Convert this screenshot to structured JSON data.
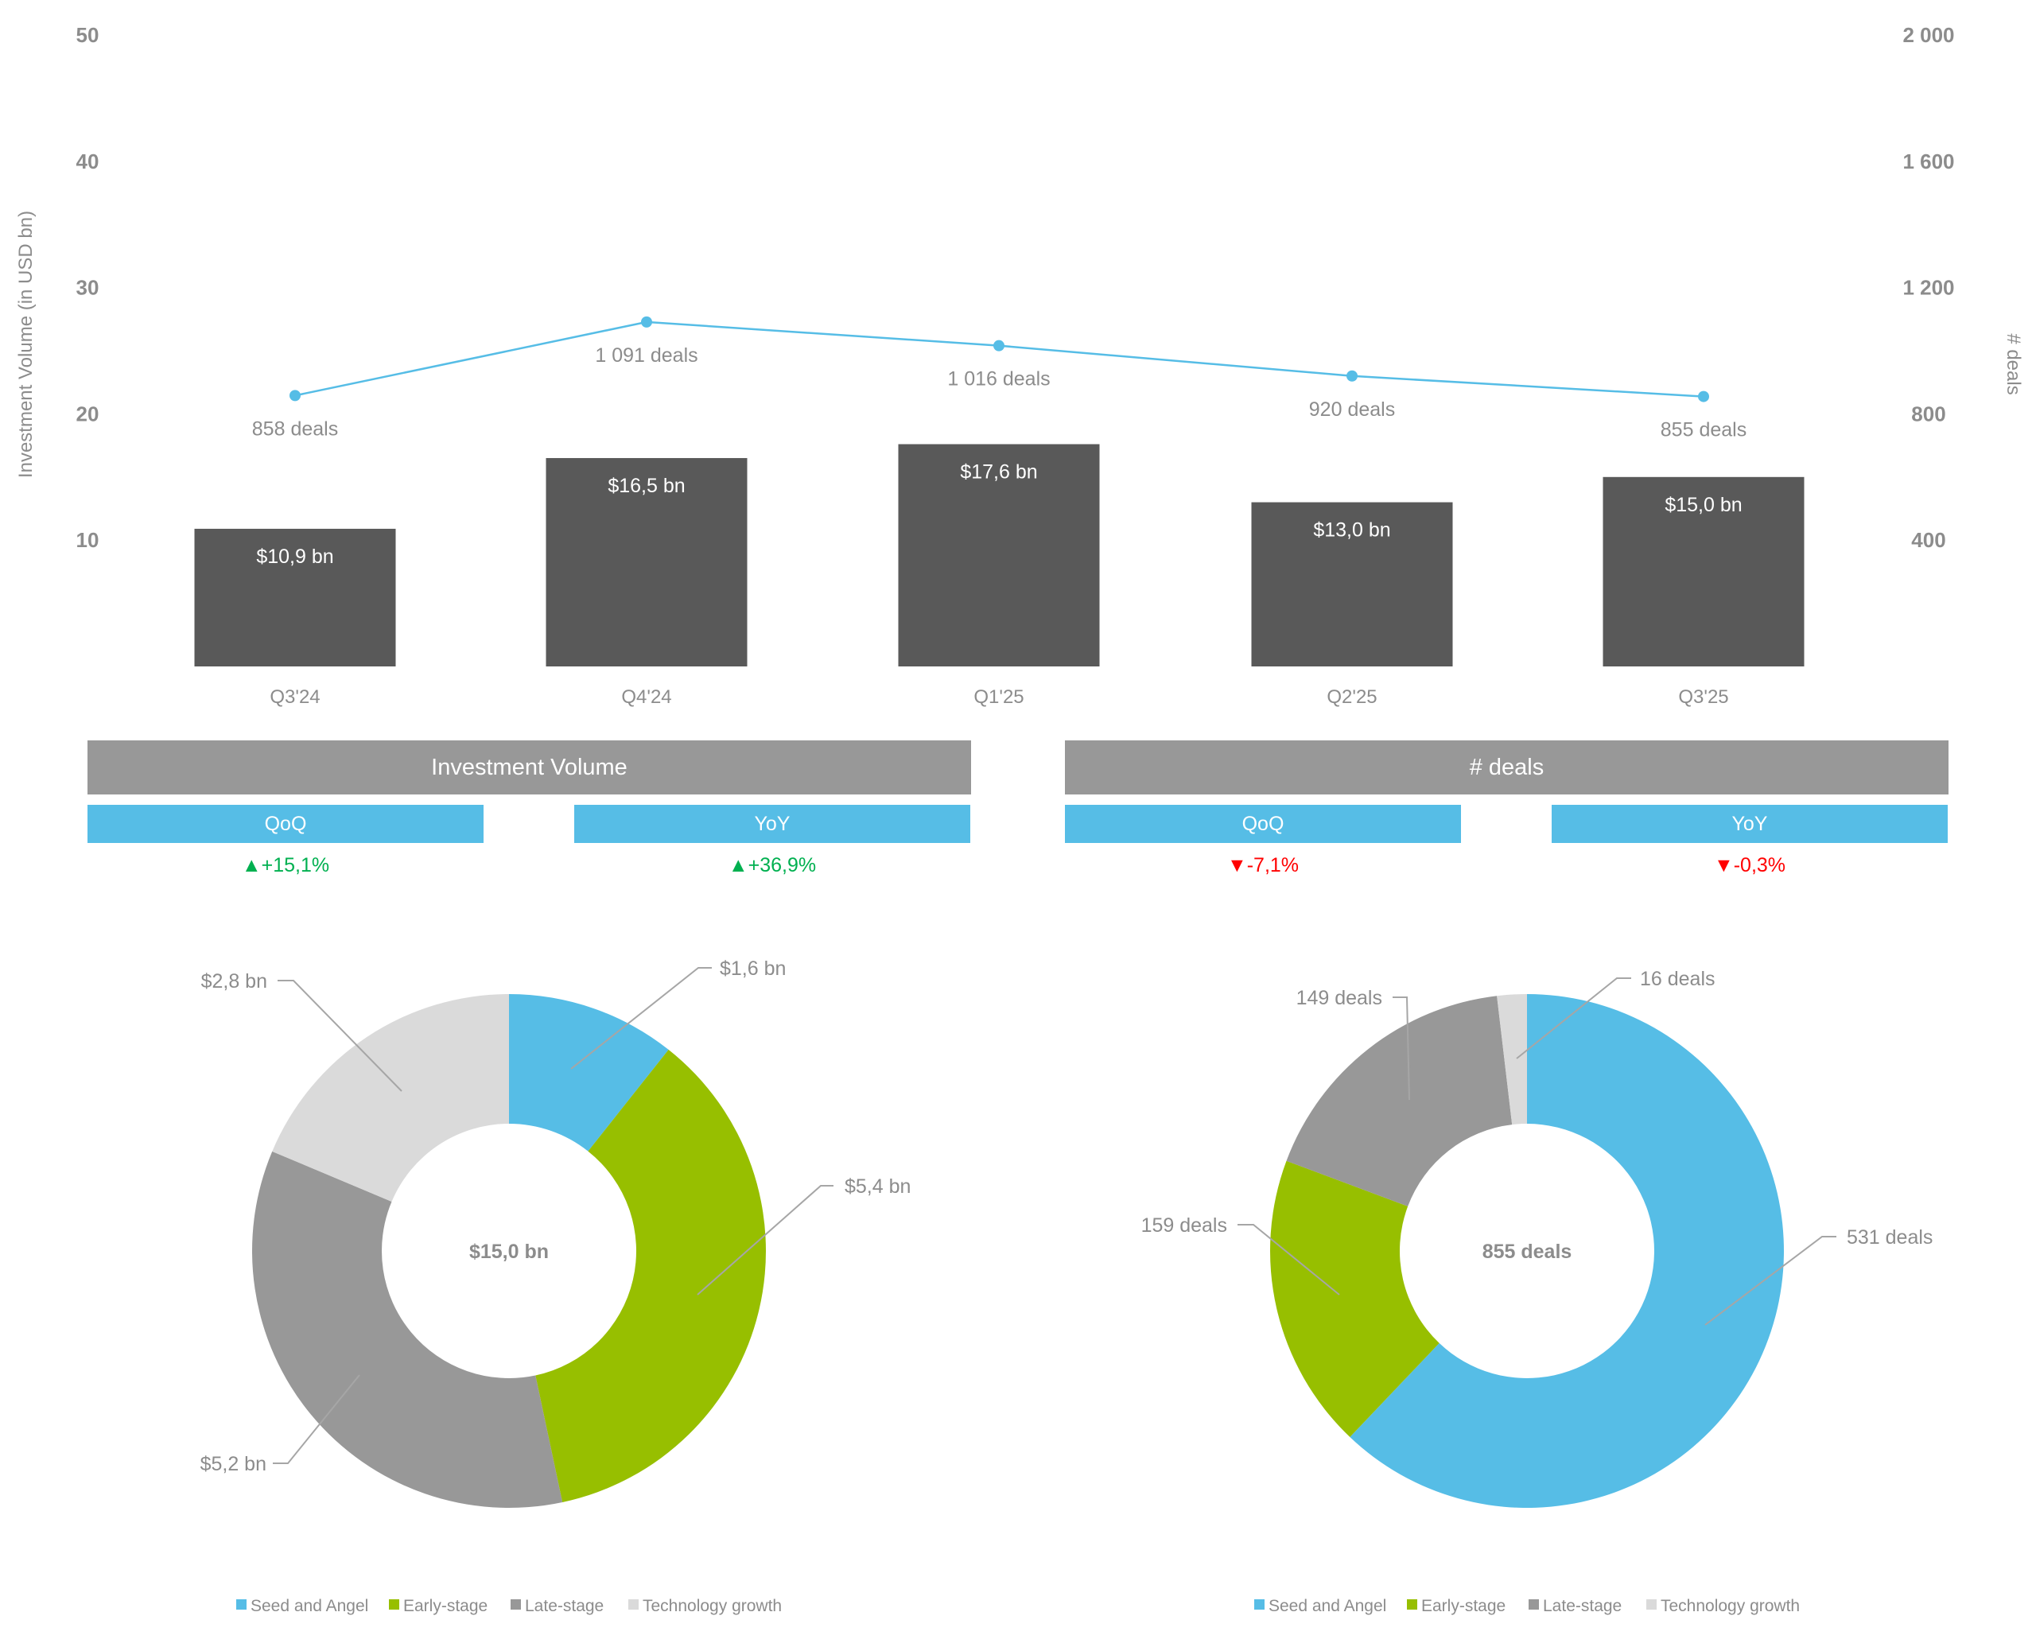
{
  "colors": {
    "bar": "#595959",
    "line": "#56BDE6",
    "seed": "#56BDE6",
    "early": "#97BF00",
    "late": "#989898",
    "tech": "#DADADA",
    "text": "#8C8C8C",
    "up": "#00B050",
    "down": "#FF0000",
    "kpi_header": "#989898",
    "kpi_sub": "#56BDE6"
  },
  "chart_data": [
    {
      "type": "bar+line",
      "categories": [
        "Q3'24",
        "Q4'24",
        "Q1'25",
        "Q2'25",
        "Q3'25"
      ],
      "ylabel": "Investment Volume (in USD bn)",
      "y2label": "# deals",
      "ylim": [
        0,
        50
      ],
      "y2lim": [
        0,
        2000
      ],
      "yticks": [
        "10",
        "20",
        "30",
        "40",
        "50"
      ],
      "y2ticks": [
        "400",
        "800",
        "1 200",
        "1 600",
        "2 000"
      ],
      "grid": false,
      "series": [
        {
          "kind": "bar",
          "axis": "left",
          "values": [
            10.9,
            16.5,
            17.6,
            13.0,
            15.0
          ],
          "labels": [
            "$10,9 bn",
            "$16,5 bn",
            "$17,6 bn",
            "$13,0 bn",
            "$15,0 bn"
          ]
        },
        {
          "kind": "line",
          "axis": "right",
          "values": [
            858,
            1091,
            1016,
            920,
            855
          ],
          "labels": [
            "858 deals",
            "1 091 deals",
            "1 016 deals",
            "920 deals",
            "855 deals"
          ]
        }
      ]
    },
    {
      "type": "pie",
      "variant": "donut",
      "center_label": "$15,0 bn",
      "categories": [
        "Seed and Angel",
        "Early-stage",
        "Late-stage",
        "Technology growth"
      ],
      "values": [
        1.6,
        5.4,
        5.2,
        2.8
      ],
      "labels": [
        "$1,6 bn",
        "$5,4 bn",
        "$5,2 bn",
        "$2,8 bn"
      ],
      "legend": "bottom"
    },
    {
      "type": "pie",
      "variant": "donut",
      "center_label": "855 deals",
      "categories": [
        "Seed and Angel",
        "Early-stage",
        "Late-stage",
        "Technology growth"
      ],
      "values": [
        531,
        159,
        149,
        16
      ],
      "labels": [
        "531 deals",
        "159 deals",
        "149 deals",
        "16 deals"
      ],
      "legend": "bottom"
    }
  ],
  "kpi": {
    "volume": {
      "title": "Investment Volume",
      "qoq_label": "QoQ",
      "yoy_label": "YoY",
      "qoq_value": "▲+15,1%",
      "yoy_value": "▲+36,9%"
    },
    "deals": {
      "title": "# deals",
      "qoq_label": "QoQ",
      "yoy_label": "YoY",
      "qoq_value": "▼-7,1%",
      "yoy_value": "▼-0,3%"
    }
  }
}
